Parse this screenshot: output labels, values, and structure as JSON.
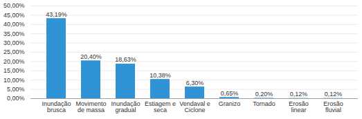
{
  "chart_data": {
    "type": "bar",
    "categories": [
      "Inundação brusca",
      "Movimento de massa",
      "Inundação gradual",
      "Estiagem e seca",
      "Vendaval e Ciclone",
      "Granizo",
      "Tornado",
      "Erosão linear",
      "Erosão fluvial"
    ],
    "values": [
      43.19,
      20.4,
      18.63,
      10.38,
      6.3,
      0.65,
      0.2,
      0.12,
      0.12
    ],
    "value_labels": [
      "43,19%",
      "20,40%",
      "18,63%",
      "10,38%",
      "6,30%",
      "0,65%",
      "0,20%",
      "0,12%",
      "0,12%"
    ],
    "color": "#2f93d6",
    "ylim": [
      0,
      50
    ],
    "yticks": [
      {
        "value": 0,
        "label": "0,00%"
      },
      {
        "value": 5,
        "label": "5,00%"
      },
      {
        "value": 10,
        "label": "10,00%"
      },
      {
        "value": 15,
        "label": "15,00%"
      },
      {
        "value": 20,
        "label": "20,00%"
      },
      {
        "value": 25,
        "label": "25,00%"
      },
      {
        "value": 30,
        "label": "30,00%"
      },
      {
        "value": 35,
        "label": "35,00%"
      },
      {
        "value": 40,
        "label": "40,00%"
      },
      {
        "value": 45,
        "label": "45,00%"
      },
      {
        "value": 50,
        "label": "50,00%"
      }
    ],
    "grid": true,
    "data_labels": true
  }
}
